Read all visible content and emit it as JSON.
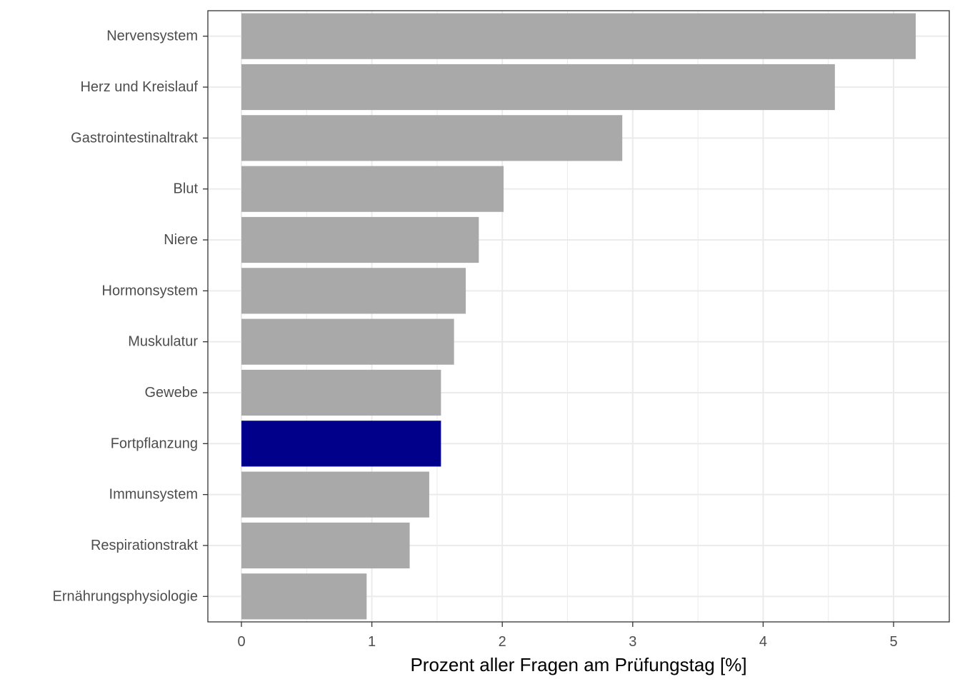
{
  "chart_data": {
    "type": "bar",
    "orientation": "horizontal",
    "title": "",
    "xlabel": "Prozent aller Fragen am Prüfungstag [%]",
    "ylabel": "",
    "xlim": [
      -0.25,
      5.4
    ],
    "xticks": [
      0,
      1,
      2,
      3,
      4,
      5
    ],
    "grid": true,
    "legend": "none",
    "categories": [
      "Nervensystem",
      "Herz und Kreislauf",
      "Gastrointestinaltrakt",
      "Blut",
      "Niere",
      "Hormonsystem",
      "Muskulatur",
      "Gewebe",
      "Fortpflanzung",
      "Immunsystem",
      "Respirationstrakt",
      "Ernährungsphysiologie"
    ],
    "values": [
      5.17,
      4.55,
      2.92,
      2.01,
      1.82,
      1.72,
      1.63,
      1.53,
      1.53,
      1.44,
      1.29,
      0.96
    ],
    "highlighted_category": "Fortpflanzung",
    "colors": {
      "bar": "#a9a9a9",
      "highlight": "#00008b",
      "grid": "#ebebeb",
      "panel_border": "#333333",
      "tick_label": "#4d4d4d",
      "axis_title": "#000000"
    }
  }
}
